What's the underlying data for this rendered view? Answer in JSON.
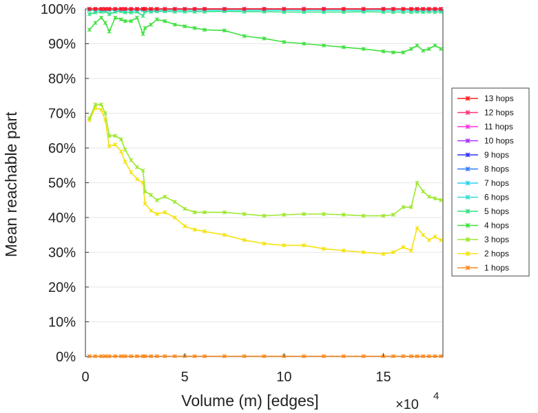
{
  "chart_data": {
    "type": "line",
    "title": "",
    "xlabel": "Volume (m) [edges]",
    "ylabel": "Mean reachable part",
    "x_multiplier": {
      "base": "×10",
      "exponent": "4"
    },
    "xlim": [
      0,
      18
    ],
    "ylim": [
      0,
      100
    ],
    "xticks": [
      0,
      5,
      10,
      15
    ],
    "xtick_labels": [
      "0",
      "5",
      "10",
      "15"
    ],
    "yticks": [
      0,
      10,
      20,
      30,
      40,
      50,
      60,
      70,
      80,
      90,
      100
    ],
    "ytick_labels": [
      "0%",
      "10%",
      "20%",
      "30%",
      "40%",
      "50%",
      "60%",
      "70%",
      "80%",
      "90%",
      "100%"
    ],
    "grid": "horizontal",
    "legend_position": "right",
    "x": [
      0.2,
      0.5,
      0.8,
      1.0,
      1.2,
      1.5,
      1.8,
      2.0,
      2.3,
      2.6,
      2.9,
      3.0,
      3.3,
      3.6,
      4.0,
      4.5,
      5.0,
      5.5,
      6.0,
      7.0,
      8.0,
      9.0,
      10.0,
      11.0,
      12.0,
      13.0,
      14.0,
      15.0,
      15.5,
      16.0,
      16.4,
      16.7,
      17.0,
      17.3,
      17.6,
      17.9
    ],
    "series": [
      {
        "name": "13 hops",
        "color": "#ff1a1a",
        "values": [
          100,
          100,
          100,
          100,
          100,
          100,
          100,
          100,
          100,
          100,
          100,
          100,
          100,
          100,
          100,
          100,
          100,
          100,
          100,
          100,
          100,
          100,
          100,
          100,
          100,
          100,
          100,
          100,
          100,
          100,
          100,
          100,
          100,
          100,
          100,
          100
        ]
      },
      {
        "name": "12 hops",
        "color": "#ff2f7a",
        "values": [
          100,
          100,
          100,
          100,
          100,
          100,
          100,
          100,
          100,
          100,
          100,
          100,
          100,
          100,
          100,
          100,
          100,
          100,
          100,
          100,
          100,
          100,
          100,
          100,
          100,
          100,
          100,
          100,
          100,
          100,
          100,
          100,
          100,
          100,
          100,
          100
        ]
      },
      {
        "name": "11 hops",
        "color": "#ff2fe0",
        "values": [
          100,
          100,
          100,
          100,
          100,
          100,
          100,
          100,
          100,
          100,
          100,
          100,
          100,
          100,
          100,
          100,
          100,
          100,
          100,
          100,
          100,
          100,
          100,
          100,
          100,
          100,
          100,
          100,
          100,
          100,
          100,
          100,
          100,
          100,
          100,
          100
        ]
      },
      {
        "name": "10 hops",
        "color": "#a330ff",
        "values": [
          100,
          100,
          100,
          100,
          100,
          100,
          100,
          100,
          100,
          100,
          100,
          100,
          100,
          100,
          100,
          100,
          100,
          100,
          100,
          100,
          100,
          100,
          100,
          100,
          100,
          100,
          100,
          100,
          100,
          100,
          100,
          100,
          100,
          100,
          100,
          100
        ]
      },
      {
        "name": "9 hops",
        "color": "#2f2fff",
        "values": [
          100,
          100,
          100,
          100,
          100,
          100,
          100,
          100,
          100,
          100,
          100,
          100,
          100,
          100,
          100,
          100,
          100,
          100,
          100,
          100,
          100,
          100,
          100,
          100,
          100,
          100,
          100,
          100,
          100,
          100,
          100,
          100,
          100,
          100,
          100,
          100
        ]
      },
      {
        "name": "8 hops",
        "color": "#2f7aff",
        "values": [
          100,
          100,
          100,
          100,
          100,
          100,
          100,
          100,
          100,
          100,
          100,
          100,
          100,
          100,
          100,
          100,
          100,
          100,
          100,
          100,
          100,
          100,
          100,
          100,
          100,
          100,
          100,
          100,
          100,
          100,
          100,
          100,
          100,
          100,
          100,
          100
        ]
      },
      {
        "name": "7 hops",
        "color": "#26d3f0",
        "values": [
          100,
          100,
          100,
          100,
          100,
          100,
          100,
          100,
          100,
          100,
          100,
          100,
          100,
          100,
          100,
          100,
          100,
          100,
          100,
          100,
          100,
          100,
          100,
          100,
          100,
          100,
          100,
          100,
          100,
          100,
          100,
          100,
          100,
          100,
          100,
          100
        ]
      },
      {
        "name": "6 hops",
        "color": "#2fe0d0",
        "values": [
          99.6,
          99.6,
          99.6,
          99.6,
          99.6,
          99.6,
          99.6,
          99.6,
          99.6,
          99.6,
          99.6,
          99.6,
          99.6,
          99.6,
          99.6,
          99.6,
          99.6,
          99.6,
          99.6,
          99.6,
          99.6,
          99.6,
          99.6,
          99.6,
          99.6,
          99.6,
          99.6,
          99.6,
          99.6,
          99.6,
          99.6,
          99.6,
          99.6,
          99.6,
          99.6,
          99.6
        ]
      },
      {
        "name": "5 hops",
        "color": "#2fe080",
        "values": [
          98.5,
          99.0,
          99.2,
          99.3,
          98.5,
          99.2,
          99.3,
          99.0,
          99.0,
          99.2,
          98.0,
          99.3,
          99.2,
          99.3,
          99.3,
          99.2,
          99.2,
          99.2,
          99.2,
          99.3,
          99.2,
          99.2,
          99.1,
          99.1,
          99.1,
          99.1,
          99.2,
          99.1,
          99.1,
          99.1,
          99.1,
          99.2,
          99.1,
          99.2,
          99.1,
          99.2
        ]
      },
      {
        "name": "4 hops",
        "color": "#3ce03c",
        "values": [
          94.0,
          96.0,
          97.5,
          96.0,
          93.5,
          97.5,
          97.0,
          96.5,
          96.5,
          97.5,
          92.8,
          94.5,
          95.5,
          97.0,
          96.5,
          95.5,
          95.0,
          94.5,
          94.0,
          93.8,
          92.2,
          91.5,
          90.5,
          90.0,
          89.5,
          89.0,
          88.5,
          87.8,
          87.5,
          87.5,
          88.5,
          89.5,
          88.0,
          88.5,
          89.5,
          88.5
        ]
      },
      {
        "name": "3 hops",
        "color": "#9be82a",
        "values": [
          68.5,
          72.5,
          72.5,
          70.0,
          63.5,
          63.5,
          62.5,
          59.5,
          56.5,
          54.5,
          53.5,
          47.5,
          46.5,
          45.0,
          46.0,
          44.5,
          42.5,
          41.5,
          41.5,
          41.5,
          41.0,
          40.5,
          40.8,
          41.0,
          41.0,
          40.8,
          40.5,
          40.5,
          40.8,
          43.0,
          43.0,
          50.0,
          47.5,
          46.0,
          45.5,
          45.0
        ]
      },
      {
        "name": "2 hops",
        "color": "#f5e20c",
        "values": [
          68.0,
          71.5,
          71.0,
          68.0,
          60.5,
          61.0,
          59.0,
          56.0,
          53.0,
          51.0,
          50.0,
          44.0,
          42.0,
          41.0,
          41.5,
          40.0,
          37.5,
          36.5,
          36.0,
          35.0,
          33.5,
          32.5,
          32.0,
          32.0,
          31.0,
          30.5,
          30.0,
          29.5,
          30.0,
          31.5,
          30.5,
          37.0,
          35.0,
          33.5,
          34.5,
          33.5
        ]
      },
      {
        "name": "1 hops",
        "color": "#ff8a1c",
        "values": [
          0.1,
          0.1,
          0.1,
          0.1,
          0.1,
          0.1,
          0.1,
          0.1,
          0.1,
          0.1,
          0.1,
          0.1,
          0.1,
          0.1,
          0.1,
          0.1,
          0.1,
          0.1,
          0.1,
          0.1,
          0.1,
          0.1,
          0.1,
          0.1,
          0.1,
          0.1,
          0.1,
          0.1,
          0.1,
          0.1,
          0.1,
          0.1,
          0.1,
          0.1,
          0.1,
          0.1
        ]
      }
    ]
  }
}
